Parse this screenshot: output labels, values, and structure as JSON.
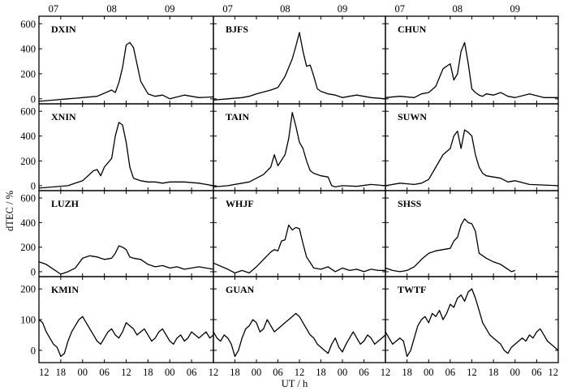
{
  "chart_data": {
    "type": "line",
    "title": "",
    "xlabel": "UT / h",
    "ylabel": "dTEC / %",
    "top_axis_ticks": [
      "07",
      "08",
      "09"
    ],
    "bottom_axis_ticks": [
      "12",
      "18",
      "00",
      "06",
      "12",
      "18",
      "00",
      "06",
      "12"
    ],
    "row_y_ticks": [
      [
        "0",
        "200",
        "400",
        "600"
      ],
      [
        "0",
        "200",
        "400",
        "600"
      ],
      [
        "0",
        "200",
        "400",
        "600"
      ],
      [
        "0",
        "100",
        "200"
      ]
    ],
    "ylim_rows": [
      [
        -40,
        660
      ],
      [
        -40,
        660
      ],
      [
        -40,
        660
      ],
      [
        -40,
        240
      ]
    ],
    "xlim": [
      0,
      48
    ],
    "grid": false,
    "panels": [
      {
        "station": "DXIN",
        "x": [
          0,
          4,
          8,
          10,
          12,
          16,
          20,
          21,
          22,
          23,
          24,
          25,
          26,
          28,
          30,
          32,
          34,
          36,
          40,
          44,
          48
        ],
        "values": [
          -20,
          -10,
          0,
          5,
          10,
          20,
          70,
          50,
          130,
          250,
          430,
          450,
          410,
          140,
          40,
          20,
          30,
          0,
          30,
          10,
          15
        ]
      },
      {
        "station": "BJFS",
        "x": [
          0,
          4,
          8,
          10,
          12,
          16,
          18,
          20,
          21,
          22,
          23,
          24,
          25,
          26,
          27,
          28,
          29,
          30,
          32,
          34,
          36,
          38,
          40,
          44,
          48
        ],
        "values": [
          -10,
          0,
          10,
          20,
          40,
          70,
          90,
          180,
          250,
          320,
          420,
          530,
          380,
          260,
          270,
          180,
          80,
          60,
          40,
          30,
          10,
          20,
          30,
          10,
          0
        ]
      },
      {
        "station": "CHUN",
        "x": [
          0,
          4,
          8,
          10,
          12,
          14,
          16,
          17,
          18,
          19,
          20,
          21,
          22,
          23,
          24,
          25,
          26,
          27,
          28,
          30,
          32,
          34,
          36,
          40,
          44,
          48
        ],
        "values": [
          10,
          20,
          10,
          40,
          50,
          100,
          240,
          260,
          280,
          150,
          200,
          380,
          450,
          280,
          80,
          50,
          30,
          20,
          40,
          30,
          50,
          20,
          10,
          40,
          10,
          10
        ]
      },
      {
        "station": "XNIN",
        "x": [
          0,
          4,
          8,
          10,
          12,
          15,
          16,
          17,
          18,
          20,
          21,
          22,
          23,
          24,
          25,
          26,
          27,
          28,
          30,
          32,
          34,
          36,
          40,
          44,
          48
        ],
        "values": [
          -20,
          -10,
          0,
          20,
          40,
          120,
          130,
          80,
          150,
          220,
          400,
          510,
          490,
          350,
          150,
          60,
          50,
          40,
          30,
          30,
          20,
          30,
          30,
          20,
          0
        ]
      },
      {
        "station": "TAIN",
        "x": [
          0,
          4,
          8,
          10,
          12,
          14,
          16,
          17,
          18,
          20,
          21,
          22,
          23,
          24,
          25,
          26,
          27,
          28,
          30,
          32,
          33,
          34,
          36,
          40,
          44,
          48
        ],
        "values": [
          -10,
          0,
          20,
          30,
          60,
          90,
          150,
          250,
          160,
          250,
          380,
          590,
          480,
          350,
          300,
          200,
          120,
          100,
          80,
          70,
          0,
          -10,
          0,
          -5,
          10,
          0
        ]
      },
      {
        "station": "SUWN",
        "x": [
          0,
          4,
          8,
          10,
          12,
          14,
          16,
          18,
          19,
          20,
          21,
          22,
          23,
          24,
          25,
          26,
          27,
          28,
          30,
          32,
          34,
          36,
          40,
          44,
          48
        ],
        "values": [
          0,
          20,
          10,
          20,
          50,
          150,
          250,
          300,
          400,
          440,
          300,
          450,
          430,
          400,
          250,
          150,
          100,
          80,
          70,
          60,
          30,
          40,
          10,
          5,
          0
        ]
      },
      {
        "station": "LUZH",
        "x": [
          0,
          2,
          4,
          6,
          8,
          10,
          12,
          14,
          16,
          18,
          20,
          21,
          22,
          23,
          24,
          25,
          26,
          28,
          30,
          32,
          34,
          36,
          38,
          40,
          42,
          44,
          46,
          48
        ],
        "values": [
          80,
          60,
          20,
          -20,
          0,
          30,
          110,
          130,
          120,
          100,
          110,
          150,
          210,
          200,
          180,
          120,
          110,
          100,
          60,
          40,
          50,
          30,
          40,
          20,
          30,
          40,
          30,
          20
        ]
      },
      {
        "station": "WHJF",
        "x": [
          0,
          4,
          6,
          8,
          10,
          12,
          14,
          16,
          17,
          18,
          19,
          20,
          21,
          22,
          23,
          24,
          25,
          26,
          28,
          30,
          32,
          34,
          36,
          38,
          40,
          42,
          44,
          46,
          48
        ],
        "values": [
          70,
          20,
          -10,
          10,
          -10,
          40,
          100,
          160,
          180,
          170,
          250,
          260,
          380,
          340,
          360,
          350,
          230,
          120,
          30,
          20,
          40,
          0,
          30,
          10,
          20,
          0,
          20,
          10,
          10
        ]
      },
      {
        "station": "SHSS",
        "x": [
          0,
          2,
          4,
          6,
          8,
          10,
          12,
          14,
          16,
          18,
          19,
          20,
          21,
          22,
          23,
          24,
          25,
          26,
          28,
          30,
          32,
          34,
          35,
          36
        ],
        "values": [
          30,
          10,
          0,
          10,
          40,
          100,
          150,
          170,
          180,
          190,
          250,
          280,
          380,
          430,
          400,
          390,
          330,
          150,
          110,
          80,
          60,
          20,
          0,
          10
        ]
      },
      {
        "station": "KMIN",
        "x": [
          0,
          1,
          2,
          3,
          4,
          5,
          6,
          7,
          8,
          9,
          10,
          11,
          12,
          13,
          14,
          15,
          16,
          17,
          18,
          19,
          20,
          21,
          22,
          23,
          24,
          25,
          26,
          27,
          28,
          29,
          30,
          31,
          32,
          33,
          34,
          35,
          36,
          37,
          38,
          39,
          40,
          41,
          42,
          43,
          44,
          45,
          46,
          47,
          48
        ],
        "values": [
          100,
          90,
          60,
          40,
          20,
          10,
          -20,
          -10,
          30,
          60,
          80,
          100,
          110,
          90,
          70,
          50,
          30,
          20,
          40,
          60,
          70,
          50,
          40,
          60,
          90,
          80,
          70,
          50,
          60,
          70,
          50,
          30,
          40,
          60,
          70,
          50,
          30,
          20,
          40,
          50,
          30,
          40,
          60,
          50,
          40,
          50,
          60,
          40,
          50
        ]
      },
      {
        "station": "GUAN",
        "x": [
          0,
          1,
          2,
          3,
          4,
          5,
          6,
          7,
          8,
          9,
          10,
          11,
          12,
          13,
          14,
          15,
          16,
          17,
          18,
          19,
          20,
          21,
          22,
          23,
          24,
          25,
          26,
          27,
          28,
          29,
          30,
          31,
          32,
          33,
          34,
          35,
          36,
          37,
          38,
          39,
          40,
          41,
          42,
          43,
          44,
          45,
          46,
          47,
          48
        ],
        "values": [
          60,
          40,
          30,
          50,
          40,
          20,
          -20,
          0,
          40,
          70,
          80,
          100,
          90,
          60,
          70,
          100,
          80,
          60,
          70,
          80,
          90,
          100,
          110,
          120,
          110,
          90,
          70,
          50,
          40,
          20,
          10,
          0,
          -10,
          20,
          40,
          10,
          -5,
          20,
          40,
          60,
          40,
          20,
          30,
          50,
          40,
          20,
          30,
          40,
          50
        ]
      },
      {
        "station": "TWTF",
        "x": [
          0,
          1,
          2,
          3,
          4,
          5,
          6,
          7,
          8,
          9,
          10,
          11,
          12,
          13,
          14,
          15,
          16,
          17,
          18,
          19,
          20,
          21,
          22,
          23,
          24,
          25,
          26,
          27,
          28,
          29,
          30,
          31,
          32,
          33,
          34,
          35,
          36,
          37,
          38,
          39,
          40,
          41,
          42,
          43,
          44,
          45,
          46,
          47,
          48
        ],
        "values": [
          60,
          40,
          20,
          30,
          40,
          30,
          -20,
          0,
          40,
          80,
          100,
          110,
          90,
          120,
          110,
          130,
          100,
          120,
          150,
          140,
          170,
          180,
          160,
          190,
          200,
          170,
          130,
          90,
          70,
          50,
          40,
          30,
          20,
          0,
          -10,
          10,
          20,
          30,
          40,
          30,
          50,
          40,
          60,
          70,
          50,
          30,
          20,
          10,
          0
        ]
      }
    ]
  }
}
